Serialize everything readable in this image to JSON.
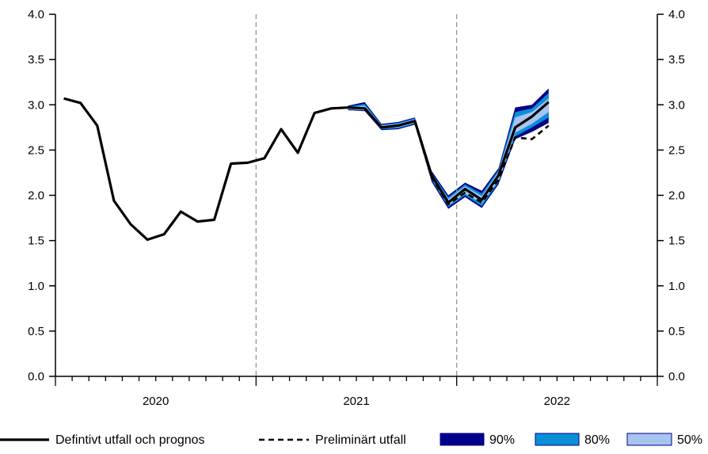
{
  "chart_data": {
    "type": "line",
    "ylim": [
      0,
      4
    ],
    "yticks": [
      "0.0",
      "0.5",
      "1.0",
      "1.5",
      "2.0",
      "2.5",
      "3.0",
      "3.5",
      "4.0"
    ],
    "years": [
      "2020",
      "2021",
      "2022"
    ],
    "x_months_range": [
      "2020-01",
      "2022-12"
    ],
    "grid": false,
    "dual_y_axis": true,
    "vertical_separators": [
      "2021-01",
      "2022-01"
    ],
    "series": [
      {
        "name": "Defintivt utfall och prognos",
        "style": "solid",
        "color": "#000000",
        "points": [
          [
            "2020-01",
            3.07
          ],
          [
            "2020-02",
            3.02
          ],
          [
            "2020-03",
            2.77
          ],
          [
            "2020-04",
            1.94
          ],
          [
            "2020-05",
            1.68
          ],
          [
            "2020-06",
            1.51
          ],
          [
            "2020-07",
            1.57
          ],
          [
            "2020-08",
            1.82
          ],
          [
            "2020-09",
            1.71
          ],
          [
            "2020-10",
            1.73
          ],
          [
            "2020-11",
            2.35
          ],
          [
            "2020-12",
            2.36
          ],
          [
            "2021-01",
            2.41
          ],
          [
            "2021-02",
            2.73
          ],
          [
            "2021-03",
            2.47
          ],
          [
            "2021-04",
            2.91
          ],
          [
            "2021-05",
            2.96
          ],
          [
            "2021-06",
            2.97
          ],
          [
            "2021-07",
            2.96
          ],
          [
            "2021-08",
            2.75
          ],
          [
            "2021-09",
            2.77
          ],
          [
            "2021-10",
            2.82
          ],
          [
            "2021-11",
            2.22
          ],
          [
            "2021-12",
            1.92
          ],
          [
            "2022-01",
            2.07
          ],
          [
            "2022-02",
            1.95
          ],
          [
            "2022-03",
            2.22
          ],
          [
            "2022-04",
            2.75
          ],
          [
            "2022-05",
            2.87
          ],
          [
            "2022-06",
            3.03
          ]
        ]
      },
      {
        "name": "Preliminärt utfall",
        "style": "dashed",
        "color": "#000000",
        "points": [
          [
            "2021-10",
            2.81
          ],
          [
            "2021-11",
            2.2
          ],
          [
            "2021-12",
            1.9
          ],
          [
            "2022-01",
            2.03
          ],
          [
            "2022-02",
            1.92
          ],
          [
            "2022-03",
            2.17
          ],
          [
            "2022-04",
            2.64
          ],
          [
            "2022-05",
            2.62
          ],
          [
            "2022-06",
            2.77
          ]
        ]
      }
    ],
    "bands": [
      {
        "name": "90%",
        "color": "#00008b",
        "x": [
          "2021-06",
          "2021-07",
          "2021-08",
          "2021-09",
          "2021-10",
          "2021-11",
          "2021-12",
          "2022-01",
          "2022-02",
          "2022-03",
          "2022-04",
          "2022-05",
          "2022-06"
        ],
        "low": [
          2.94,
          2.93,
          2.72,
          2.73,
          2.78,
          2.15,
          1.85,
          1.98,
          1.86,
          2.12,
          2.62,
          2.7,
          2.8
        ],
        "high": [
          2.99,
          3.03,
          2.79,
          2.81,
          2.86,
          2.27,
          2.0,
          2.14,
          2.05,
          2.3,
          2.97,
          3.0,
          3.18
        ]
      },
      {
        "name": "80%",
        "color": "#0a8fd6",
        "x": [
          "2021-06",
          "2021-07",
          "2021-08",
          "2021-09",
          "2021-10",
          "2021-11",
          "2021-12",
          "2022-01",
          "2022-02",
          "2022-03",
          "2022-04",
          "2022-05",
          "2022-06"
        ],
        "low": [
          2.95,
          2.94,
          2.73,
          2.74,
          2.79,
          2.17,
          1.87,
          2.0,
          1.88,
          2.14,
          2.65,
          2.75,
          2.86
        ],
        "high": [
          2.98,
          3.01,
          2.78,
          2.8,
          2.85,
          2.25,
          1.98,
          2.12,
          2.02,
          2.28,
          2.92,
          2.96,
          3.13
        ]
      },
      {
        "name": "50%",
        "color": "#a7c4ef",
        "x": [
          "2021-06",
          "2021-07",
          "2021-08",
          "2021-09",
          "2021-10",
          "2021-11",
          "2021-12",
          "2022-01",
          "2022-02",
          "2022-03",
          "2022-04",
          "2022-05",
          "2022-06"
        ],
        "low": [
          2.95,
          2.94,
          2.74,
          2.75,
          2.8,
          2.19,
          1.89,
          2.02,
          1.91,
          2.16,
          2.69,
          2.79,
          2.92
        ],
        "high": [
          2.97,
          2.99,
          2.77,
          2.79,
          2.84,
          2.23,
          1.96,
          2.1,
          1.99,
          2.26,
          2.86,
          2.92,
          3.07
        ]
      }
    ],
    "legend": {
      "placement": "bottom",
      "items": [
        {
          "label": "Defintivt utfall och prognos",
          "kind": "solid-line"
        },
        {
          "label": "Preliminärt utfall",
          "kind": "dashed-line"
        },
        {
          "label": "90%",
          "kind": "swatch",
          "color": "#00008b"
        },
        {
          "label": "80%",
          "kind": "swatch",
          "color": "#0a8fd6"
        },
        {
          "label": "50%",
          "kind": "swatch",
          "color": "#a7c4ef"
        }
      ]
    }
  }
}
